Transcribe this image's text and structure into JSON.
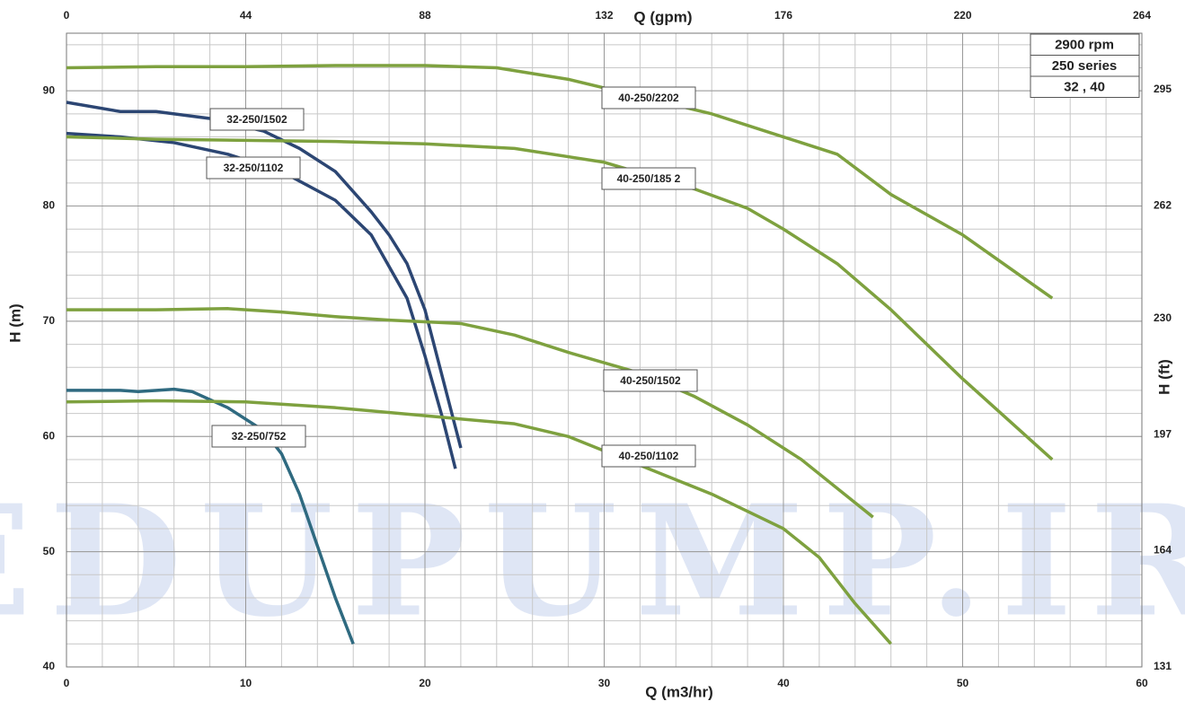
{
  "chart_data": {
    "type": "line",
    "x_label": "Q (m3/hr)",
    "x2_label": "Q (gpm)",
    "y_label": "H (m)",
    "y2_label": "H (ft)",
    "xlim": [
      0,
      60
    ],
    "xticks": [
      0,
      10,
      20,
      30,
      40,
      50,
      60
    ],
    "x2lim": [
      0,
      264
    ],
    "x2ticks": [
      0,
      44,
      88,
      132,
      176,
      220,
      264
    ],
    "ylim": [
      40,
      95
    ],
    "yticks": [
      40,
      50,
      60,
      70,
      80,
      90
    ],
    "y2lim": [
      131,
      311
    ],
    "y2ticks": [
      131,
      164,
      197,
      230,
      262,
      295
    ],
    "grid": true,
    "info": [
      "2900 rpm",
      "250 series",
      "32 , 40"
    ],
    "watermark": "EDUPUMP.IR",
    "series": [
      {
        "name": "32-250/1502",
        "color": "#2c4673",
        "x": [
          0,
          3,
          5,
          8,
          11,
          13,
          15,
          17,
          18,
          19,
          20,
          21,
          22
        ],
        "values": [
          89,
          88.2,
          88.2,
          87.6,
          86.5,
          85,
          83,
          79.5,
          77.5,
          75,
          71,
          65,
          59
        ]
      },
      {
        "name": "32-250/1102",
        "color": "#2c4673",
        "x": [
          0,
          3,
          6,
          9,
          12,
          15,
          17,
          19,
          20,
          21,
          21.7
        ],
        "values": [
          86.3,
          86,
          85.5,
          84.5,
          83,
          80.5,
          77.5,
          72,
          67,
          61.5,
          57.2
        ]
      },
      {
        "name": "32-250/752",
        "color": "#2f6a80",
        "x": [
          0,
          3,
          4,
          6,
          7,
          9,
          11,
          12,
          13,
          14,
          15,
          16
        ],
        "values": [
          64,
          64,
          63.9,
          64.1,
          63.9,
          62.5,
          60.5,
          58.5,
          55,
          50.5,
          46,
          42
        ]
      },
      {
        "name": "40-250/2202",
        "color": "#7ea13f",
        "x": [
          0,
          5,
          10,
          15,
          20,
          24,
          28,
          32,
          36,
          40,
          43,
          46,
          50,
          55
        ],
        "values": [
          92,
          92.1,
          92.1,
          92.2,
          92.2,
          92,
          91,
          89.5,
          88,
          86,
          84.5,
          81,
          77.5,
          72
        ]
      },
      {
        "name": "40-250/185 2",
        "color": "#7ea13f",
        "x": [
          0,
          5,
          10,
          15,
          20,
          25,
          30,
          35,
          38,
          40,
          43,
          46,
          50,
          55
        ],
        "values": [
          86,
          85.8,
          85.7,
          85.6,
          85.4,
          85,
          83.8,
          81.5,
          79.8,
          78,
          75,
          71,
          65,
          58
        ]
      },
      {
        "name": "40-250/1502",
        "color": "#7ea13f",
        "x": [
          0,
          5,
          9,
          12,
          15,
          18,
          22,
          25,
          28,
          32,
          35,
          38,
          41,
          45
        ],
        "values": [
          71,
          71,
          71.1,
          70.8,
          70.4,
          70.1,
          69.8,
          68.8,
          67.3,
          65.5,
          63.5,
          61,
          58,
          53
        ]
      },
      {
        "name": "40-250/1102",
        "color": "#7ea13f",
        "x": [
          0,
          5,
          10,
          15,
          20,
          25,
          28,
          32,
          36,
          40,
          42,
          44,
          46
        ],
        "values": [
          63,
          63.1,
          63,
          62.5,
          61.8,
          61.1,
          60,
          57.5,
          55,
          52,
          49.5,
          45.5,
          42
        ]
      }
    ]
  }
}
